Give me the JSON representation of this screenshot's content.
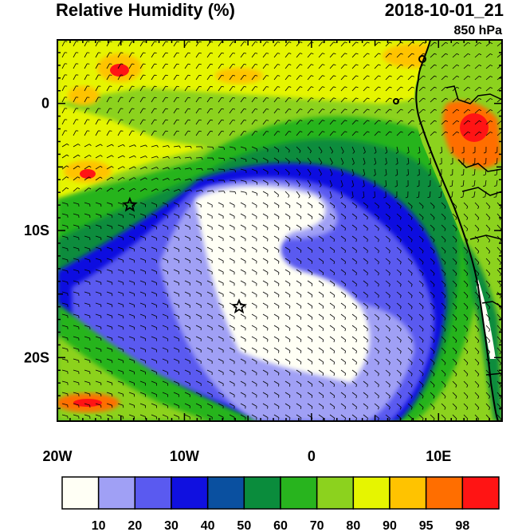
{
  "header": {
    "title": "Relative Humidity (%)",
    "valid_time": "2018-10-01_21",
    "level": "850 hPa"
  },
  "axes": {
    "x_ticks": [
      {
        "value": -20,
        "label": "20W"
      },
      {
        "value": -10,
        "label": "10W"
      },
      {
        "value": 0,
        "label": "0"
      },
      {
        "value": 10,
        "label": "10E"
      }
    ],
    "y_ticks": [
      {
        "value": 0,
        "label": "0"
      },
      {
        "value": -10,
        "label": "10S"
      },
      {
        "value": -20,
        "label": "20S"
      }
    ],
    "lon_range": [
      -20,
      15
    ],
    "lat_range": [
      -25,
      5
    ]
  },
  "colorbar": {
    "colors": [
      "#fffff5",
      "#a0a0f5",
      "#5a5af0",
      "#1010e0",
      "#0a50a0",
      "#0a8c3c",
      "#28b41e",
      "#8cd21e",
      "#e6f500",
      "#ffc300",
      "#ff6e00",
      "#ff1414"
    ],
    "labels": [
      "10",
      "20",
      "30",
      "40",
      "50",
      "60",
      "70",
      "80",
      "90",
      "95",
      "98"
    ]
  },
  "markers": [
    {
      "name": "star-marker-west",
      "lon": -14.3,
      "lat": -8.0
    },
    {
      "name": "star-marker-central",
      "lon": -5.7,
      "lat": -16.0
    }
  ]
}
